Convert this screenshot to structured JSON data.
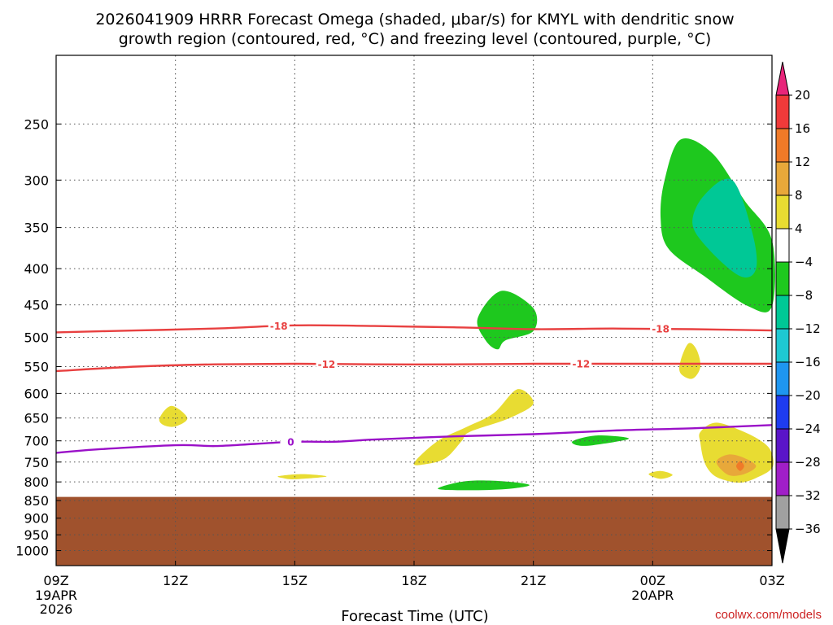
{
  "title_line1": "2026041909 HRRR Forecast Omega (shaded, μbar/s) for KMYL with dendritic snow",
  "title_line2": "growth region (contoured, red, °C) and freezing level (contoured, purple, °C)",
  "xlabel": "Forecast Time (UTC)",
  "credit": "coolwx.com/models",
  "chart_data": {
    "type": "contour",
    "title": "2026041909 HRRR Forecast Omega (shaded, μbar/s) for KMYL with dendritic snow growth region (contoured, red, °C) and freezing level (contoured, purple, °C)",
    "xlabel": "Forecast Time (UTC)",
    "ylabel": "",
    "x_range_hours": [
      0,
      18
    ],
    "y_axis": "pressure (hPa), log scale, inverted",
    "y_range": [
      200,
      1050
    ],
    "x_ticks": [
      {
        "h": 0,
        "label": "09Z",
        "sub1": "19APR",
        "sub2": "2026"
      },
      {
        "h": 3,
        "label": "12Z",
        "sub1": "",
        "sub2": ""
      },
      {
        "h": 6,
        "label": "15Z",
        "sub1": "",
        "sub2": ""
      },
      {
        "h": 9,
        "label": "18Z",
        "sub1": "",
        "sub2": ""
      },
      {
        "h": 12,
        "label": "21Z",
        "sub1": "",
        "sub2": ""
      },
      {
        "h": 15,
        "label": "00Z",
        "sub1": "20APR",
        "sub2": ""
      },
      {
        "h": 18,
        "label": "03Z",
        "sub1": "",
        "sub2": ""
      }
    ],
    "y_ticks": [
      250,
      300,
      350,
      400,
      450,
      500,
      550,
      600,
      650,
      700,
      750,
      800,
      850,
      900,
      950,
      1000
    ],
    "grid": true,
    "ground_surface_hpa": 840,
    "colorbar": {
      "labels": [
        "20",
        "16",
        "12",
        "8",
        "4",
        "−4",
        "−8",
        "−12",
        "−16",
        "−20",
        "−24",
        "−28",
        "−32",
        "−36"
      ],
      "bins": [
        {
          "color": "#e8257a",
          "from": 20,
          "to": null
        },
        {
          "color": "#f03a3a",
          "from": 16,
          "to": 20
        },
        {
          "color": "#f07a28",
          "from": 12,
          "to": 16
        },
        {
          "color": "#e8a83a",
          "from": 8,
          "to": 12
        },
        {
          "color": "#e8dc32",
          "from": 4,
          "to": 8
        },
        {
          "color": "#ffffff",
          "from": -4,
          "to": 4
        },
        {
          "color": "#1ec81e",
          "from": -8,
          "to": -4
        },
        {
          "color": "#00c896",
          "from": -12,
          "to": -8
        },
        {
          "color": "#1ec8d2",
          "from": -16,
          "to": -12
        },
        {
          "color": "#1e96f0",
          "from": -20,
          "to": -16
        },
        {
          "color": "#1e3cf0",
          "from": -24,
          "to": -20
        },
        {
          "color": "#5a14c8",
          "from": -28,
          "to": -24
        },
        {
          "color": "#a01ec8",
          "from": -32,
          "to": -28
        },
        {
          "color": "#a0a0a0",
          "from": -36,
          "to": -32
        },
        {
          "color": "#000000",
          "from": null,
          "to": -36
        }
      ]
    },
    "contours": [
      {
        "level": "-18",
        "color": "#e84040",
        "points": [
          [
            0,
            492
          ],
          [
            2,
            489
          ],
          [
            4,
            486
          ],
          [
            6,
            481
          ],
          [
            8,
            482
          ],
          [
            10,
            484
          ],
          [
            12,
            487
          ],
          [
            14,
            486
          ],
          [
            16,
            487
          ],
          [
            18,
            489
          ]
        ],
        "labels_at_h": [
          5.6,
          15.2
        ]
      },
      {
        "level": "-12",
        "color": "#e84040",
        "points": [
          [
            0,
            558
          ],
          [
            2,
            550
          ],
          [
            4,
            546
          ],
          [
            6,
            545
          ],
          [
            8,
            546
          ],
          [
            10,
            546
          ],
          [
            12,
            545
          ],
          [
            14,
            545
          ],
          [
            16,
            545
          ],
          [
            18,
            545
          ]
        ],
        "labels_at_h": [
          6.8,
          13.2
        ]
      },
      {
        "level": "0",
        "color": "#9a10c8",
        "points": [
          [
            0,
            728
          ],
          [
            1,
            720
          ],
          [
            3,
            710
          ],
          [
            4,
            712
          ],
          [
            5,
            707
          ],
          [
            6,
            702
          ],
          [
            7,
            702
          ],
          [
            8,
            697
          ],
          [
            10,
            690
          ],
          [
            12,
            685
          ],
          [
            14,
            677
          ],
          [
            16,
            672
          ],
          [
            18,
            665
          ]
        ],
        "labels_at_h": [
          5.9
        ]
      }
    ],
    "omega_regions": [
      {
        "level": "-4",
        "color": "#1ec81e",
        "points": [
          [
            15.3,
            300
          ],
          [
            15.7,
            263
          ],
          [
            16.5,
            275
          ],
          [
            17.3,
            320
          ],
          [
            18,
            365
          ],
          [
            18,
            452
          ],
          [
            17.4,
            452
          ],
          [
            16.3,
            410
          ],
          [
            15.4,
            375
          ],
          [
            15.2,
            340
          ]
        ]
      },
      {
        "level": "-8",
        "color": "#00c896",
        "points": [
          [
            16,
            345
          ],
          [
            16.3,
            315
          ],
          [
            17,
            300
          ],
          [
            17.5,
            355
          ],
          [
            17.6,
            400
          ],
          [
            17.2,
            410
          ],
          [
            16.4,
            375
          ]
        ]
      },
      {
        "level": "-4",
        "color": "#1ec81e",
        "points": [
          [
            10.6,
            470
          ],
          [
            11.2,
            430
          ],
          [
            12,
            455
          ],
          [
            12,
            490
          ],
          [
            11.3,
            505
          ],
          [
            11.1,
            520
          ],
          [
            10.8,
            505
          ]
        ]
      },
      {
        "level": "4",
        "color": "#e8dc32",
        "points": [
          [
            9,
            752
          ],
          [
            9.6,
            700
          ],
          [
            10.3,
            670
          ],
          [
            11,
            640
          ],
          [
            11.6,
            592
          ],
          [
            12,
            620
          ],
          [
            11.4,
            650
          ],
          [
            10.4,
            680
          ],
          [
            10.2,
            700
          ],
          [
            9.8,
            740
          ],
          [
            9.3,
            755
          ]
        ]
      },
      {
        "level": "4",
        "color": "#e8dc32",
        "points": [
          [
            2.6,
            650
          ],
          [
            2.9,
            625
          ],
          [
            3.3,
            650
          ],
          [
            3,
            668
          ],
          [
            2.7,
            665
          ]
        ]
      },
      {
        "level": "4",
        "color": "#e8dc32",
        "points": [
          [
            5.6,
            785
          ],
          [
            6.2,
            780
          ],
          [
            6.8,
            786
          ],
          [
            6,
            793
          ],
          [
            5.7,
            790
          ]
        ]
      },
      {
        "level": "-4",
        "color": "#1ec81e",
        "points": [
          [
            9.6,
            818
          ],
          [
            10.3,
            798
          ],
          [
            11.2,
            798
          ],
          [
            11.9,
            808
          ],
          [
            11.4,
            818
          ],
          [
            10.5,
            822
          ]
        ]
      },
      {
        "level": "-4",
        "color": "#1ec81e",
        "points": [
          [
            13,
            700
          ],
          [
            13.6,
            688
          ],
          [
            14.4,
            695
          ],
          [
            13.5,
            710
          ],
          [
            13.1,
            710
          ]
        ]
      },
      {
        "level": "4",
        "color": "#e8dc32",
        "points": [
          [
            14.9,
            780
          ],
          [
            15.2,
            772
          ],
          [
            15.5,
            782
          ],
          [
            15.2,
            792
          ]
        ]
      },
      {
        "level": "4",
        "color": "#e8dc32",
        "points": [
          [
            15.7,
            540
          ],
          [
            15.9,
            510
          ],
          [
            16.1,
            520
          ],
          [
            16.2,
            550
          ],
          [
            16,
            572
          ],
          [
            15.7,
            562
          ]
        ]
      },
      {
        "level": "4",
        "color": "#e8dc32",
        "points": [
          [
            16.2,
            680
          ],
          [
            16.6,
            660
          ],
          [
            17.3,
            680
          ],
          [
            17.8,
            705
          ],
          [
            18,
            730
          ],
          [
            18,
            765
          ],
          [
            17.6,
            790
          ],
          [
            17.2,
            802
          ],
          [
            16.8,
            795
          ],
          [
            16.5,
            780
          ],
          [
            16.3,
            750
          ],
          [
            16.2,
            705
          ]
        ]
      },
      {
        "level": "8",
        "color": "#e8a83a",
        "points": [
          [
            16.6,
            750
          ],
          [
            16.9,
            732
          ],
          [
            17.3,
            740
          ],
          [
            17.6,
            760
          ],
          [
            17.3,
            780
          ],
          [
            16.9,
            782
          ]
        ]
      },
      {
        "level": "12",
        "color": "#f07a28",
        "points": [
          [
            17.1,
            760
          ],
          [
            17.2,
            748
          ],
          [
            17.3,
            760
          ],
          [
            17.2,
            772
          ]
        ]
      }
    ]
  }
}
